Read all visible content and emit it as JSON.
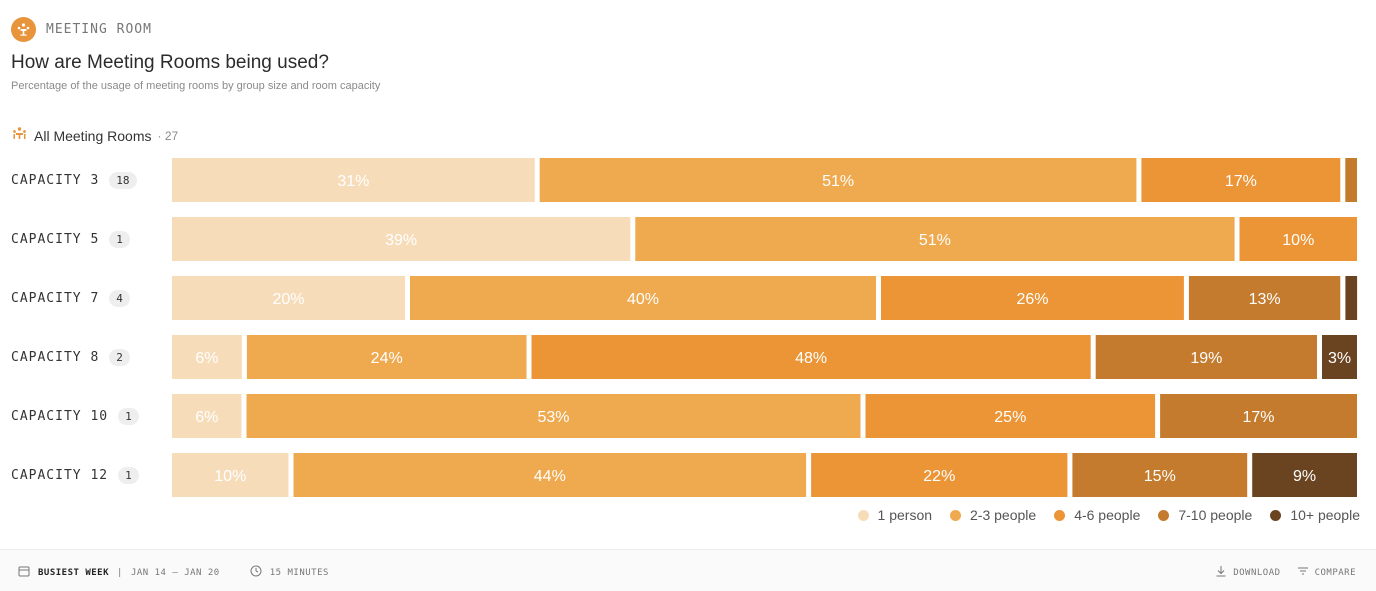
{
  "header": {
    "section_label": "MEETING ROOM",
    "title": "How are Meeting Rooms being used?",
    "subtitle": "Percentage of the usage of meeting rooms by group size and room capacity"
  },
  "group": {
    "label": "All Meeting Rooms",
    "count": "27"
  },
  "rows": [
    {
      "label": "CAPACITY 3",
      "count": "18"
    },
    {
      "label": "CAPACITY 5",
      "count": "1"
    },
    {
      "label": "CAPACITY 7",
      "count": "4"
    },
    {
      "label": "CAPACITY 8",
      "count": "2"
    },
    {
      "label": "CAPACITY 10",
      "count": "1"
    },
    {
      "label": "CAPACITY 12",
      "count": "1"
    }
  ],
  "legend": [
    {
      "label": "1 person",
      "color": "#f7dcba"
    },
    {
      "label": "2-3 people",
      "color": "#efa94f"
    },
    {
      "label": "4-6 people",
      "color": "#eb9536"
    },
    {
      "label": "7-10 people",
      "color": "#c47b2e"
    },
    {
      "label": "10+ people",
      "color": "#6a4420"
    }
  ],
  "chart_data": {
    "type": "bar",
    "orientation": "horizontal",
    "stacked": true,
    "normalized": true,
    "categories": [
      "CAPACITY 3",
      "CAPACITY 5",
      "CAPACITY 7",
      "CAPACITY 8",
      "CAPACITY 10",
      "CAPACITY 12"
    ],
    "series": [
      {
        "name": "1 person",
        "values": [
          31,
          39,
          20,
          6,
          6,
          10
        ],
        "color": "#f7dcba"
      },
      {
        "name": "2-3 people",
        "values": [
          51,
          51,
          40,
          24,
          53,
          44
        ],
        "color": "#efa94f"
      },
      {
        "name": "4-6 people",
        "values": [
          17,
          10,
          26,
          48,
          25,
          22
        ],
        "color": "#eb9536"
      },
      {
        "name": "7-10 people",
        "values": [
          1,
          0,
          13,
          19,
          17,
          15
        ],
        "color": "#c47b2e"
      },
      {
        "name": "10+ people",
        "values": [
          0,
          0,
          1,
          3,
          0,
          9
        ],
        "color": "#6a4420"
      }
    ],
    "value_labels_min": 3,
    "legend_position": "bottom-right"
  },
  "footer": {
    "busiest_label": "BUSIEST WEEK",
    "separator": "|",
    "date_range": "JAN 14 – JAN 20",
    "interval": "15 MINUTES",
    "download": "DOWNLOAD",
    "compare": "COMPARE"
  }
}
